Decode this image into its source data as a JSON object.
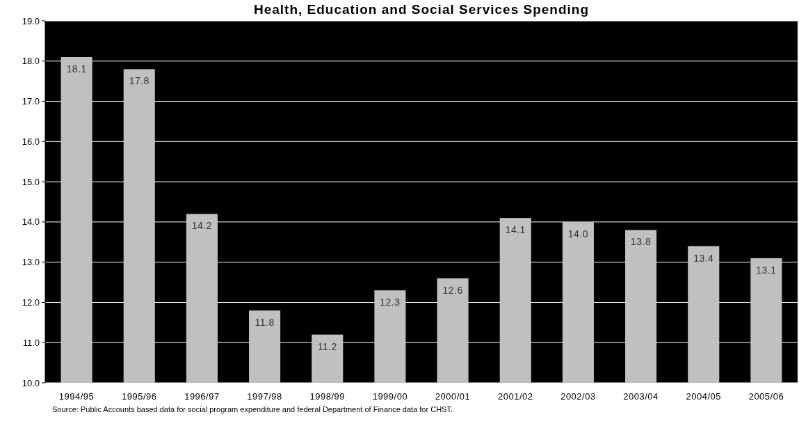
{
  "chart_data": {
    "type": "bar",
    "title": "Health, Education and Social Services Spending",
    "categories": [
      "1994/95",
      "1995/96",
      "1996/97",
      "1997/98",
      "1998/99",
      "1999/00",
      "2000/01",
      "2001/02",
      "2002/03",
      "2003/04",
      "2004/05",
      "2005/06"
    ],
    "values": [
      18.1,
      17.8,
      14.2,
      11.8,
      11.2,
      12.3,
      12.6,
      14.1,
      14.0,
      13.8,
      13.4,
      13.1
    ],
    "color": "#c0c0c0",
    "ylim": [
      10,
      19
    ],
    "yticks": [
      {
        "value": 10,
        "label": "10.0"
      },
      {
        "value": 11,
        "label": "11.0"
      },
      {
        "value": 12,
        "label": "12.0"
      },
      {
        "value": 13,
        "label": "13.0"
      },
      {
        "value": 14,
        "label": "14.0"
      },
      {
        "value": 15,
        "label": "15.0"
      },
      {
        "value": 16,
        "label": "16.0"
      },
      {
        "value": 17,
        "label": "17.0"
      },
      {
        "value": 18,
        "label": "18.0"
      },
      {
        "value": 19,
        "label": "19.0"
      }
    ],
    "grid": "y",
    "value_labels": [
      "18.1",
      "17.8",
      "14.2",
      "11.8",
      "11.2",
      "12.3",
      "12.6",
      "14.1",
      "14.0",
      "13.8",
      "13.4",
      "13.1"
    ],
    "annotations": [
      "Source: Public Accounts based data for social program expenditure and federal Department of Finance data for CHST."
    ]
  }
}
